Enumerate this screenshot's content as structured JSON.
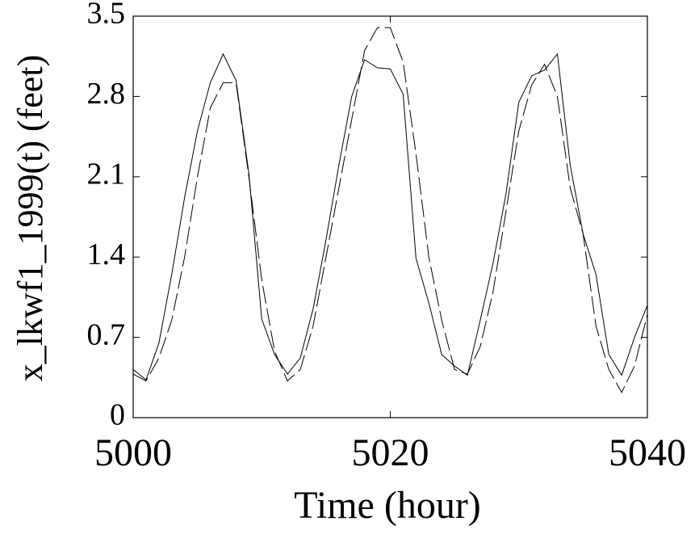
{
  "chart_data": {
    "type": "line",
    "xlabel": "Time (hour)",
    "ylabel": "x_lkwf1_1999(t) (feet)",
    "x": [
      5000,
      5001,
      5002,
      5003,
      5004,
      5005,
      5006,
      5007,
      5008,
      5009,
      5010,
      5011,
      5012,
      5013,
      5014,
      5015,
      5016,
      5017,
      5018,
      5019,
      5020,
      5021,
      5022,
      5023,
      5024,
      5025,
      5026,
      5027,
      5028,
      5029,
      5030,
      5031,
      5032,
      5033,
      5034,
      5035,
      5036,
      5037,
      5038,
      5039,
      5040
    ],
    "series": [
      {
        "color": "#000000",
        "dash": "solid",
        "values": [
          0.42,
          0.33,
          0.65,
          1.25,
          1.92,
          2.5,
          2.92,
          3.17,
          2.94,
          2.13,
          0.86,
          0.55,
          0.38,
          0.52,
          0.95,
          1.55,
          2.2,
          2.8,
          3.12,
          3.05,
          3.04,
          2.82,
          1.39,
          1.0,
          0.55,
          0.45,
          0.37,
          0.85,
          1.35,
          1.95,
          2.75,
          2.98,
          3.03,
          3.17,
          2.2,
          1.6,
          1.25,
          0.55,
          0.37,
          0.7,
          0.98
        ]
      },
      {
        "color": "#000000",
        "dash": "dashed",
        "values": [
          0.38,
          0.32,
          0.52,
          0.85,
          1.4,
          2.1,
          2.7,
          2.92,
          2.92,
          2.1,
          1.2,
          0.58,
          0.32,
          0.42,
          0.8,
          1.4,
          2.0,
          2.6,
          3.2,
          3.4,
          3.4,
          3.1,
          2.3,
          1.4,
          0.85,
          0.42,
          0.38,
          0.62,
          1.1,
          1.8,
          2.5,
          2.9,
          3.08,
          2.8,
          2.0,
          1.6,
          0.8,
          0.42,
          0.22,
          0.45,
          0.9
        ]
      }
    ],
    "xlim": [
      5000,
      5040
    ],
    "xticks": [
      5000,
      5020,
      5040
    ],
    "ylim": [
      0,
      3.5
    ],
    "yticks": [
      0,
      0.7,
      1.4,
      2.1,
      2.8,
      3.5
    ],
    "grid": false
  }
}
